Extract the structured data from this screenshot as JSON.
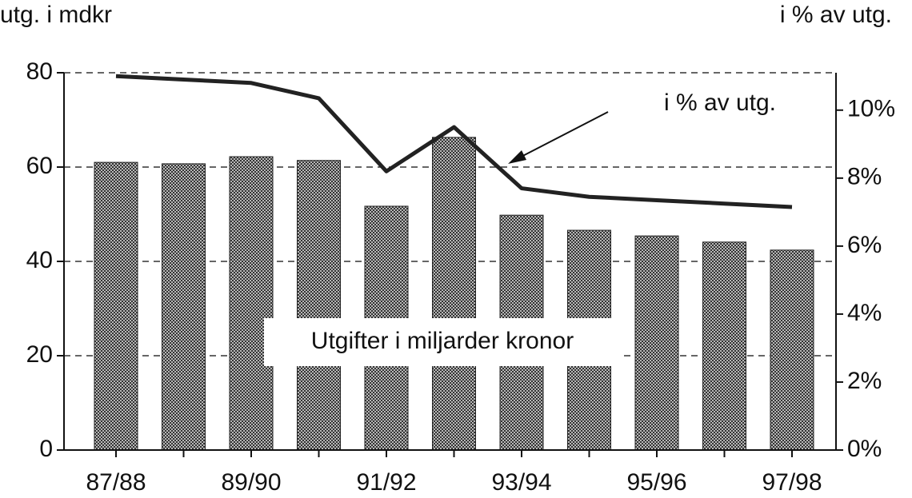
{
  "chart_data": {
    "type": "bar",
    "y_label": "utg. i mdkr",
    "y2_label": "i % av utg.",
    "categories": [
      "87/88",
      null,
      "89/90",
      null,
      "91/92",
      null,
      "93/94",
      null,
      "95/96",
      null,
      "97/98"
    ],
    "series": [
      {
        "name": "Utgifter i miljarder kronor",
        "type": "bar",
        "color": "#b8b8b8",
        "values": [
          61,
          60.7,
          62.2,
          61.4,
          51.7,
          66.3,
          49.8,
          46.6,
          45.4,
          44.1,
          42.4
        ]
      },
      {
        "name": "i % av utg.",
        "type": "line",
        "axis": "y2",
        "color": "#222222",
        "values": [
          11.0,
          10.9,
          10.8,
          10.35,
          8.2,
          9.5,
          7.7,
          7.45,
          7.35,
          7.25,
          7.15
        ]
      }
    ],
    "ylim": [
      0,
      80
    ],
    "yticks": [
      0,
      20,
      40,
      60,
      80
    ],
    "y2lim": [
      0,
      11.1
    ],
    "y2ticks": [
      {
        "value": 0,
        "label": "0%"
      },
      {
        "value": 2,
        "label": "2%"
      },
      {
        "value": 4,
        "label": "4%"
      },
      {
        "value": 6,
        "label": "6%"
      },
      {
        "value": 8,
        "label": "8%"
      },
      {
        "value": 10,
        "label": "10%"
      }
    ],
    "grid": true
  }
}
